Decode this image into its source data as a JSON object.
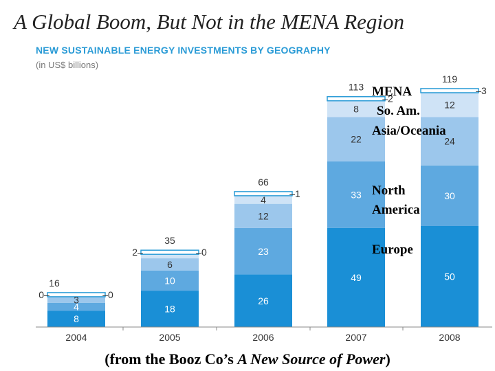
{
  "header": {
    "title": "A Global Boom, But Not in the MENA Region",
    "subtitle": "NEW SUSTAINABLE ENERGY INVESTMENTS BY GEOGRAPHY",
    "units": "(in US$ billions)"
  },
  "caption": {
    "prefix": "(from the Booz Co’s ",
    "italic": "A New Source of Power",
    "suffix": ")"
  },
  "annotations": {
    "mena": "MENA",
    "so_am": "So. Am.",
    "asia": "Asia/Oceania",
    "north_1": "North",
    "north_2": "America",
    "europe": "Europe"
  },
  "chart_data": {
    "type": "bar",
    "stacked": true,
    "title": "A Global Boom, But Not in the MENA Region",
    "subtitle": "NEW SUSTAINABLE ENERGY INVESTMENTS BY GEOGRAPHY",
    "ylabel": "(in US$ billions)",
    "categories": [
      "2004",
      "2005",
      "2006",
      "2007",
      "2008"
    ],
    "ylim": [
      0,
      120
    ],
    "series": [
      {
        "name": "Europe",
        "values": [
          8,
          18,
          26,
          49,
          50
        ],
        "color": "#1a8fd6"
      },
      {
        "name": "North America",
        "values": [
          4,
          10,
          23,
          33,
          30
        ],
        "color": "#5ea9e0"
      },
      {
        "name": "Asia/Oceania",
        "values": [
          3,
          6,
          12,
          22,
          24
        ],
        "color": "#9cc7ec"
      },
      {
        "name": "So. Am.",
        "values": [
          0,
          2,
          4,
          8,
          12
        ],
        "color": "#cfe3f6"
      },
      {
        "name": "MENA",
        "values": [
          0,
          0,
          1,
          2,
          3
        ],
        "color": "#ffffff"
      }
    ],
    "totals": [
      16,
      35,
      66,
      113,
      119
    ],
    "value_labels": [
      {
        "seg0": "8",
        "seg1": "4",
        "seg2": "3",
        "left": "0–",
        "right": "–0"
      },
      {
        "seg0": "18",
        "seg1": "10",
        "seg2": "6",
        "left": "2–",
        "right": "–0"
      },
      {
        "seg0": "26",
        "seg1": "23",
        "seg2": "12",
        "seg3": "4",
        "right": "–1"
      },
      {
        "seg0": "49",
        "seg1": "33",
        "seg2": "22",
        "seg3": "8",
        "right": "–2"
      },
      {
        "seg0": "50",
        "seg1": "30",
        "seg2": "24",
        "seg3": "12",
        "right": "–3"
      }
    ]
  }
}
